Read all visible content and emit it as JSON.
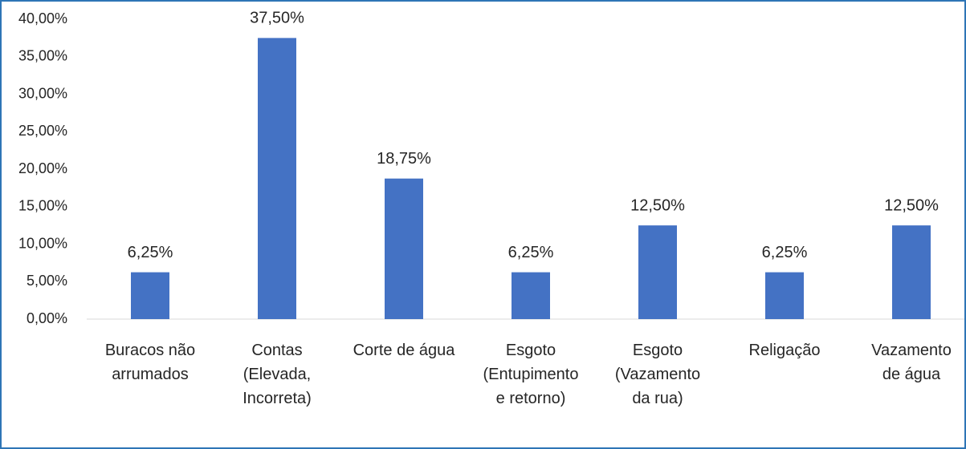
{
  "chart_data": {
    "type": "bar",
    "categories": [
      "Buracos não\narrumados",
      "Contas\n(Elevada,\nIncorreta)",
      "Corte de água",
      "Esgoto\n(Entupimento\ne retorno)",
      "Esgoto\n(Vazamento\nda rua)",
      "Religação",
      "Vazamento\nde água"
    ],
    "values": [
      6.25,
      37.5,
      18.75,
      6.25,
      12.5,
      6.25,
      12.5
    ],
    "value_labels": [
      "6,25%",
      "37,50%",
      "18,75%",
      "6,25%",
      "12,50%",
      "6,25%",
      "12,50%"
    ],
    "color": "#4472c4",
    "ylim": [
      0,
      40
    ],
    "yticks": [
      {
        "value": 0,
        "label": "0,00%"
      },
      {
        "value": 5,
        "label": "5,00%"
      },
      {
        "value": 10,
        "label": "10,00%"
      },
      {
        "value": 15,
        "label": "15,00%"
      },
      {
        "value": 20,
        "label": "20,00%"
      },
      {
        "value": 25,
        "label": "25,00%"
      },
      {
        "value": 30,
        "label": "30,00%"
      },
      {
        "value": 35,
        "label": "35,00%"
      },
      {
        "value": 40,
        "label": "40,00%"
      }
    ],
    "grid": false
  }
}
